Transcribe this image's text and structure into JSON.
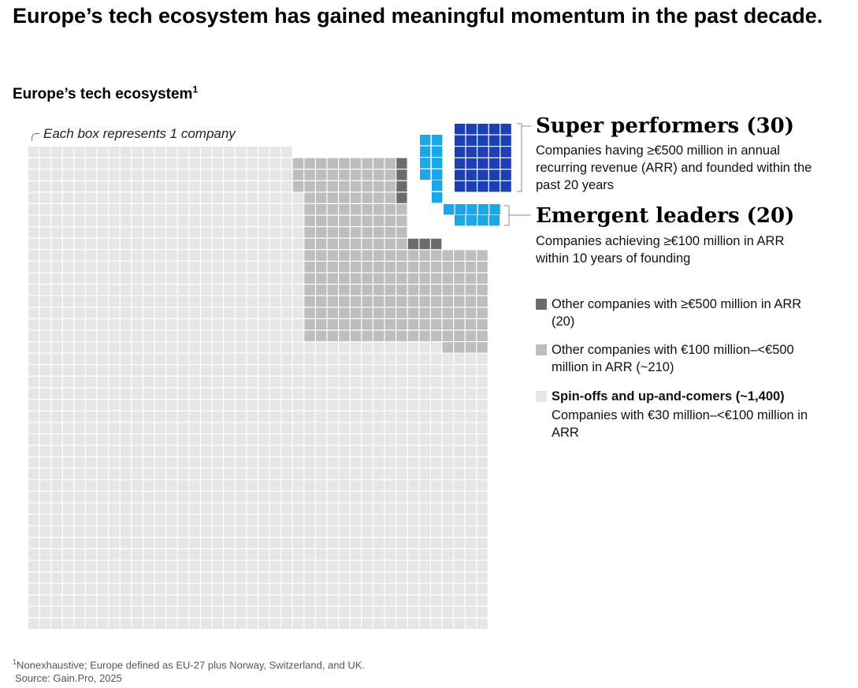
{
  "title": "Europe’s tech ecosystem has gained meaningful momentum in the past decade.",
  "subtitle": "Europe’s tech ecosystem",
  "subtitle_sup": "1",
  "note": "Each box represents 1 company",
  "colors": {
    "super_performers": "#1c3fb4",
    "emergent_leaders": "#1aa8e8",
    "other_500": "#6b6b6b",
    "other_100_500": "#bdbdbd",
    "spin_offs": "#e6e6e6"
  },
  "chart_data": {
    "type": "waffle",
    "unit": "Each box represents 1 company",
    "categories": [
      {
        "key": "super_performers",
        "label": "Super performers (30)",
        "count": 30,
        "description": "Companies having ≥€500 million in annual recurring revenue (ARR) and founded within the past 20 years"
      },
      {
        "key": "emergent_leaders",
        "label": "Emergent leaders (20)",
        "count": 20,
        "description": "Companies achieving ≥€100 million in ARR within 10 years of founding"
      },
      {
        "key": "other_500",
        "label": "Other companies with ≥€500 million in ARR (20)",
        "count": 20
      },
      {
        "key": "other_100_500",
        "label": "Other companies with €100 million–<€500 million in ARR (~210)",
        "count": 210
      },
      {
        "key": "spin_offs",
        "label": "Spin-offs and up-and-comers (~1,400)",
        "count": 1400,
        "description": "Companies with €30 million–<€100 million in ARR"
      }
    ]
  },
  "legend": {
    "super_head": "Super performers (30)",
    "super_desc": "Companies having ≥€500 million in annual recurring revenue (ARR) and founded within the past 20 years",
    "emergent_head": "Emergent leaders (20)",
    "emergent_desc": "Companies achieving ≥€100 million in ARR within 10 years of founding",
    "other500": "Other companies with ≥€500 million in ARR (20)",
    "other100": "Other companies with €100 million–<€500 million in ARR (~210)",
    "spin_title": "Spin-offs and up-and-comers (~1,400)",
    "spin_desc": "Companies with €30 million–<€100 million in ARR"
  },
  "footnote": {
    "line1": "Nonexhaustive; Europe defined as EU-27 plus Norway, Switzerland, and UK.",
    "line1_sup": "1",
    "line2": "Source: Gain.Pro, 2025"
  }
}
